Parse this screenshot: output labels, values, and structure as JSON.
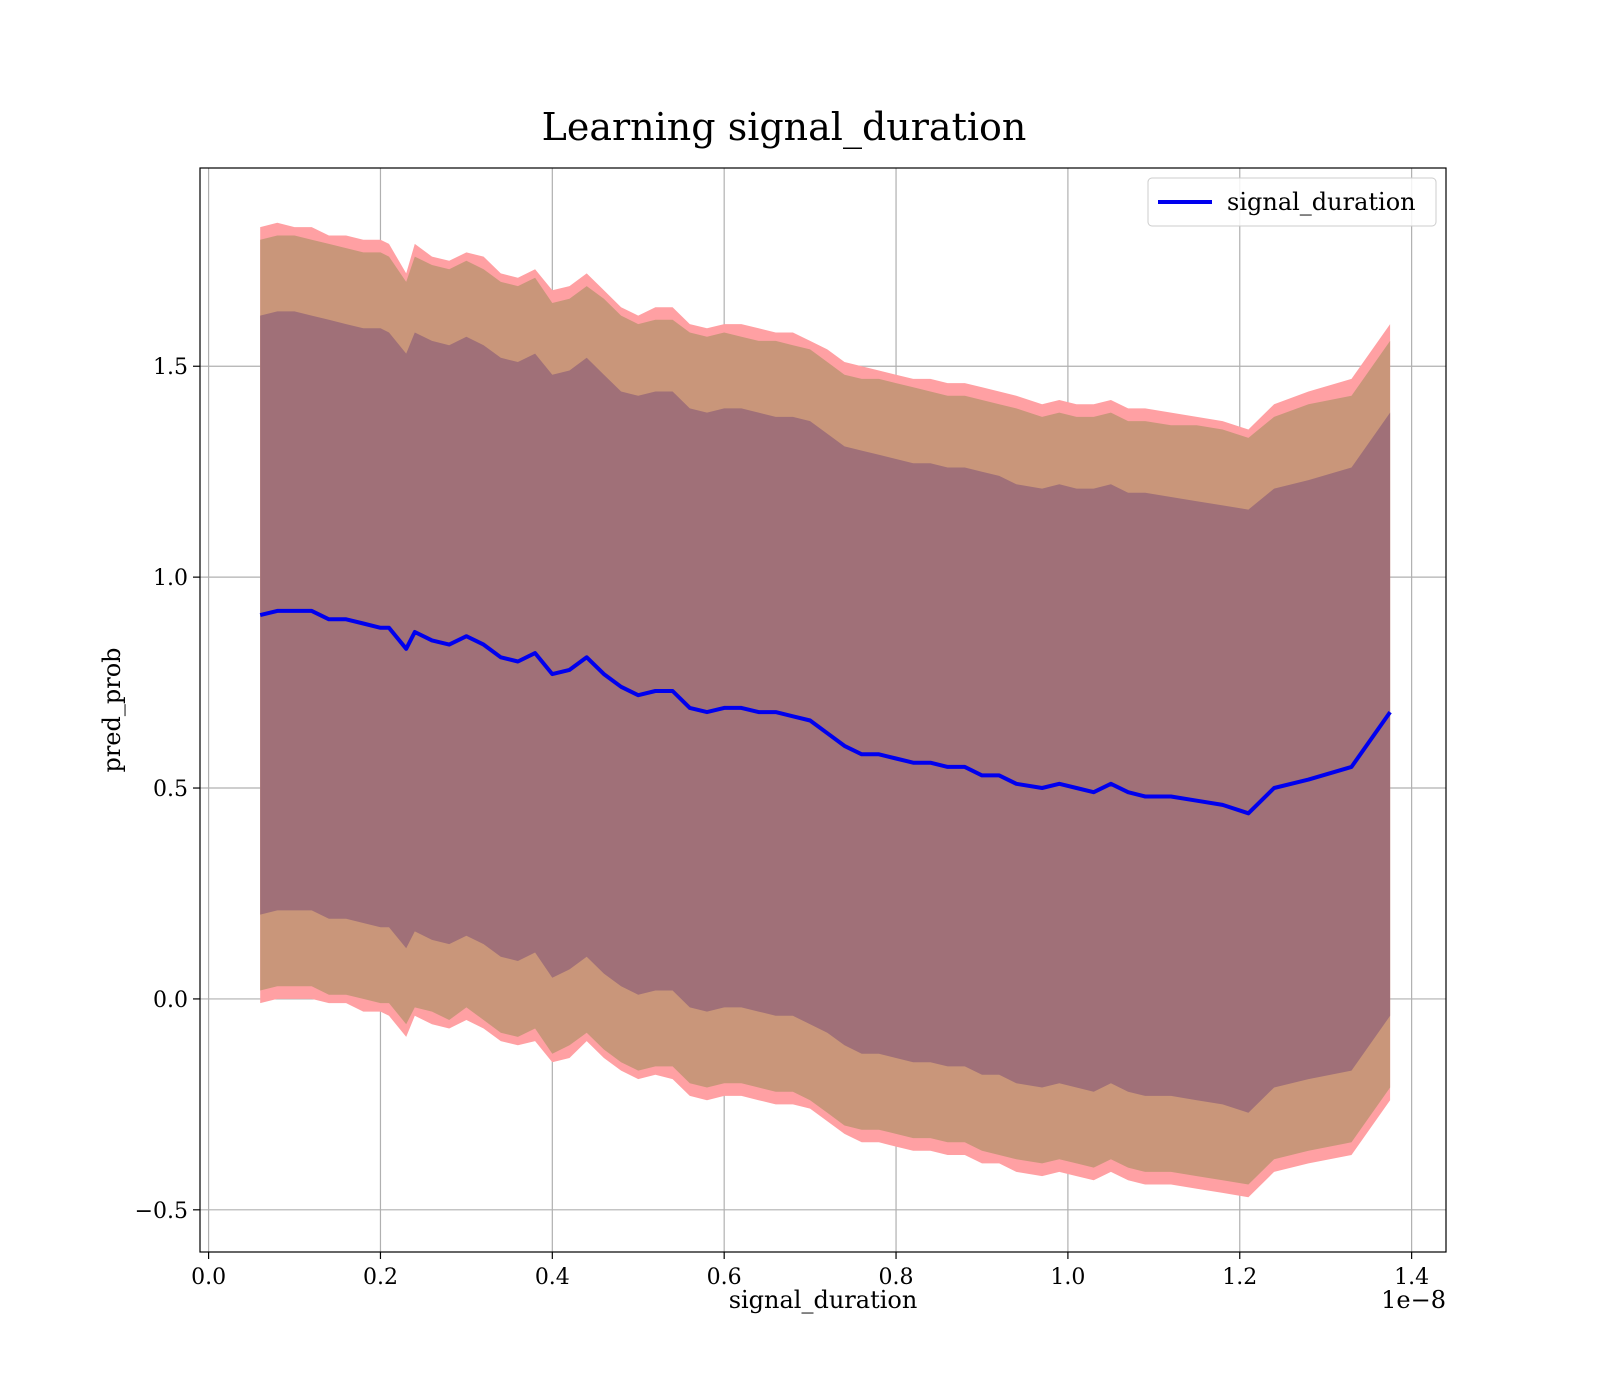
{
  "chart_data": {
    "type": "line",
    "title": "Learning signal_duration",
    "xlabel": "signal_duration",
    "ylabel": "pred_prob",
    "x_offset_text": "1e−8",
    "x_scale": 1e-08,
    "xlim": [
      -0.01,
      1.44
    ],
    "ylim": [
      -0.6,
      1.97
    ],
    "xticks": [
      0.0,
      0.2,
      0.4,
      0.6,
      0.8,
      1.0,
      1.2,
      1.4
    ],
    "xtick_labels": [
      "0.0",
      "0.2",
      "0.4",
      "0.6",
      "0.8",
      "1.0",
      "1.2",
      "1.4"
    ],
    "yticks": [
      -0.5,
      0.0,
      0.5,
      1.0,
      1.5
    ],
    "ytick_labels": [
      "−0.5",
      "0.0",
      "0.5",
      "1.0",
      "1.5"
    ],
    "grid": true,
    "legend": {
      "position": "top-right",
      "entries": [
        "signal_duration"
      ]
    },
    "colors": {
      "line": "#0000ee",
      "band_outer": "#ffa0a3",
      "band_middle": "#c9967a",
      "band_inner": "#a07078"
    },
    "x": [
      0.06,
      0.08,
      0.1,
      0.12,
      0.14,
      0.16,
      0.18,
      0.2,
      0.21,
      0.23,
      0.24,
      0.26,
      0.28,
      0.3,
      0.32,
      0.34,
      0.36,
      0.38,
      0.4,
      0.42,
      0.44,
      0.46,
      0.48,
      0.5,
      0.52,
      0.54,
      0.56,
      0.58,
      0.6,
      0.62,
      0.64,
      0.66,
      0.68,
      0.7,
      0.72,
      0.74,
      0.76,
      0.78,
      0.8,
      0.82,
      0.84,
      0.86,
      0.88,
      0.9,
      0.92,
      0.94,
      0.97,
      0.99,
      1.01,
      1.03,
      1.05,
      1.07,
      1.09,
      1.12,
      1.15,
      1.18,
      1.21,
      1.24,
      1.28,
      1.33,
      1.375
    ],
    "series": [
      {
        "name": "signal_duration",
        "values": [
          0.91,
          0.92,
          0.92,
          0.92,
          0.9,
          0.9,
          0.89,
          0.88,
          0.88,
          0.83,
          0.87,
          0.85,
          0.84,
          0.86,
          0.84,
          0.81,
          0.8,
          0.82,
          0.77,
          0.78,
          0.81,
          0.77,
          0.74,
          0.72,
          0.73,
          0.73,
          0.69,
          0.68,
          0.69,
          0.69,
          0.68,
          0.68,
          0.67,
          0.66,
          0.63,
          0.6,
          0.58,
          0.58,
          0.57,
          0.56,
          0.56,
          0.55,
          0.55,
          0.53,
          0.53,
          0.51,
          0.5,
          0.51,
          0.5,
          0.49,
          0.51,
          0.49,
          0.48,
          0.48,
          0.47,
          0.46,
          0.44,
          0.5,
          0.52,
          0.55,
          0.68
        ]
      }
    ],
    "bands": [
      {
        "level": "outer",
        "upper": [
          1.83,
          1.84,
          1.83,
          1.83,
          1.81,
          1.81,
          1.8,
          1.8,
          1.79,
          1.72,
          1.79,
          1.76,
          1.75,
          1.77,
          1.76,
          1.72,
          1.71,
          1.73,
          1.68,
          1.69,
          1.72,
          1.68,
          1.64,
          1.62,
          1.64,
          1.64,
          1.6,
          1.59,
          1.6,
          1.6,
          1.59,
          1.58,
          1.58,
          1.56,
          1.54,
          1.51,
          1.5,
          1.49,
          1.48,
          1.47,
          1.47,
          1.46,
          1.46,
          1.45,
          1.44,
          1.43,
          1.41,
          1.42,
          1.41,
          1.41,
          1.42,
          1.4,
          1.4,
          1.39,
          1.38,
          1.37,
          1.35,
          1.41,
          1.44,
          1.47,
          1.6
        ],
        "lower": [
          -0.01,
          0.0,
          0.0,
          0.0,
          -0.01,
          -0.01,
          -0.03,
          -0.03,
          -0.04,
          -0.09,
          -0.04,
          -0.06,
          -0.07,
          -0.05,
          -0.07,
          -0.1,
          -0.11,
          -0.1,
          -0.15,
          -0.14,
          -0.1,
          -0.14,
          -0.17,
          -0.19,
          -0.18,
          -0.19,
          -0.23,
          -0.24,
          -0.23,
          -0.23,
          -0.24,
          -0.25,
          -0.25,
          -0.26,
          -0.29,
          -0.32,
          -0.34,
          -0.34,
          -0.35,
          -0.36,
          -0.36,
          -0.37,
          -0.37,
          -0.39,
          -0.39,
          -0.41,
          -0.42,
          -0.41,
          -0.42,
          -0.43,
          -0.41,
          -0.43,
          -0.44,
          -0.44,
          -0.45,
          -0.46,
          -0.47,
          -0.41,
          -0.39,
          -0.37,
          -0.24
        ]
      },
      {
        "level": "middle",
        "upper": [
          1.8,
          1.81,
          1.81,
          1.8,
          1.79,
          1.78,
          1.77,
          1.77,
          1.76,
          1.7,
          1.76,
          1.74,
          1.73,
          1.75,
          1.73,
          1.7,
          1.69,
          1.71,
          1.65,
          1.66,
          1.69,
          1.66,
          1.62,
          1.6,
          1.61,
          1.61,
          1.58,
          1.57,
          1.58,
          1.57,
          1.56,
          1.56,
          1.55,
          1.54,
          1.51,
          1.48,
          1.47,
          1.47,
          1.46,
          1.45,
          1.44,
          1.43,
          1.43,
          1.42,
          1.41,
          1.4,
          1.38,
          1.39,
          1.38,
          1.38,
          1.39,
          1.37,
          1.37,
          1.36,
          1.36,
          1.35,
          1.33,
          1.38,
          1.41,
          1.43,
          1.56
        ],
        "lower": [
          0.02,
          0.03,
          0.03,
          0.03,
          0.01,
          0.01,
          0.0,
          -0.01,
          -0.01,
          -0.06,
          -0.02,
          -0.03,
          -0.05,
          -0.02,
          -0.05,
          -0.08,
          -0.09,
          -0.07,
          -0.13,
          -0.11,
          -0.08,
          -0.12,
          -0.15,
          -0.17,
          -0.16,
          -0.16,
          -0.2,
          -0.21,
          -0.2,
          -0.2,
          -0.21,
          -0.22,
          -0.22,
          -0.24,
          -0.27,
          -0.3,
          -0.31,
          -0.31,
          -0.32,
          -0.33,
          -0.33,
          -0.34,
          -0.34,
          -0.36,
          -0.37,
          -0.38,
          -0.39,
          -0.38,
          -0.39,
          -0.4,
          -0.38,
          -0.4,
          -0.41,
          -0.41,
          -0.42,
          -0.43,
          -0.44,
          -0.38,
          -0.36,
          -0.34,
          -0.21
        ]
      },
      {
        "level": "inner",
        "upper": [
          1.62,
          1.63,
          1.63,
          1.62,
          1.61,
          1.6,
          1.59,
          1.59,
          1.58,
          1.53,
          1.58,
          1.56,
          1.55,
          1.57,
          1.55,
          1.52,
          1.51,
          1.53,
          1.48,
          1.49,
          1.52,
          1.48,
          1.44,
          1.43,
          1.44,
          1.44,
          1.4,
          1.39,
          1.4,
          1.4,
          1.39,
          1.38,
          1.38,
          1.37,
          1.34,
          1.31,
          1.3,
          1.29,
          1.28,
          1.27,
          1.27,
          1.26,
          1.26,
          1.25,
          1.24,
          1.22,
          1.21,
          1.22,
          1.21,
          1.21,
          1.22,
          1.2,
          1.2,
          1.19,
          1.18,
          1.17,
          1.16,
          1.21,
          1.23,
          1.26,
          1.39
        ],
        "lower": [
          0.2,
          0.21,
          0.21,
          0.21,
          0.19,
          0.19,
          0.18,
          0.17,
          0.17,
          0.12,
          0.16,
          0.14,
          0.13,
          0.15,
          0.13,
          0.1,
          0.09,
          0.11,
          0.05,
          0.07,
          0.1,
          0.06,
          0.03,
          0.01,
          0.02,
          0.02,
          -0.02,
          -0.03,
          -0.02,
          -0.02,
          -0.03,
          -0.04,
          -0.04,
          -0.06,
          -0.08,
          -0.11,
          -0.13,
          -0.13,
          -0.14,
          -0.15,
          -0.15,
          -0.16,
          -0.16,
          -0.18,
          -0.18,
          -0.2,
          -0.21,
          -0.2,
          -0.21,
          -0.22,
          -0.2,
          -0.22,
          -0.23,
          -0.23,
          -0.24,
          -0.25,
          -0.27,
          -0.21,
          -0.19,
          -0.17,
          -0.04
        ]
      }
    ]
  }
}
